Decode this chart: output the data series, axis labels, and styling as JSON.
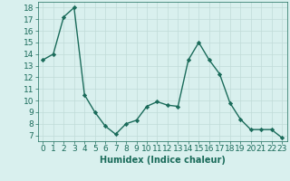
{
  "x": [
    0,
    1,
    2,
    3,
    4,
    5,
    6,
    7,
    8,
    9,
    10,
    11,
    12,
    13,
    14,
    15,
    16,
    17,
    18,
    19,
    20,
    21,
    22,
    23
  ],
  "y": [
    13.5,
    14.0,
    17.2,
    18.0,
    10.5,
    9.0,
    7.8,
    7.1,
    8.0,
    8.3,
    9.5,
    9.9,
    9.6,
    9.5,
    13.5,
    15.0,
    13.5,
    12.3,
    9.8,
    8.4,
    7.5,
    7.5,
    7.5,
    6.8
  ],
  "line_color": "#1a6b5a",
  "marker": "D",
  "marker_size": 2.2,
  "line_width": 1.0,
  "bg_color": "#d9f0ee",
  "grid_color": "#c0dbd8",
  "xlabel": "Humidex (Indice chaleur)",
  "ylabel_ticks": [
    7,
    8,
    9,
    10,
    11,
    12,
    13,
    14,
    15,
    16,
    17,
    18
  ],
  "xlim": [
    -0.5,
    23.5
  ],
  "ylim": [
    6.5,
    18.5
  ],
  "xlabel_fontsize": 7,
  "tick_fontsize": 6.5
}
